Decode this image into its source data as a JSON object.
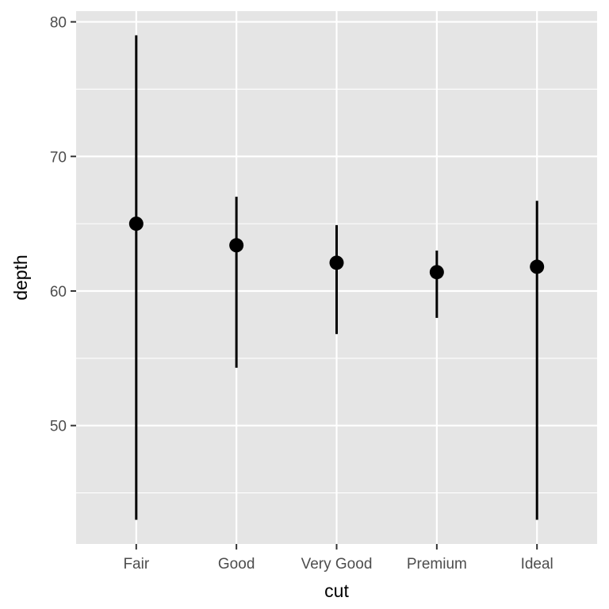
{
  "chart_data": {
    "type": "pointrange",
    "categories": [
      "Fair",
      "Good",
      "Very Good",
      "Premium",
      "Ideal"
    ],
    "points": [
      {
        "category": "Fair",
        "y": 65.0,
        "ymin": 43.0,
        "ymax": 79.0
      },
      {
        "category": "Good",
        "y": 63.4,
        "ymin": 54.3,
        "ymax": 67.0
      },
      {
        "category": "Very Good",
        "y": 62.1,
        "ymin": 56.8,
        "ymax": 64.9
      },
      {
        "category": "Premium",
        "y": 61.4,
        "ymin": 58.0,
        "ymax": 63.0
      },
      {
        "category": "Ideal",
        "y": 61.8,
        "ymin": 43.0,
        "ymax": 66.7
      }
    ],
    "xlabel": "cut",
    "ylabel": "depth",
    "ylim": [
      41.2,
      80.8
    ],
    "y_ticks": [
      50,
      60,
      70,
      80
    ],
    "y_minor_ticks": [
      45,
      55,
      65,
      75
    ],
    "grid": true,
    "colors": {
      "panel_background": "#e5e5e5",
      "grid": "#ffffff",
      "mark": "#000000",
      "tick_label": "#4d4d4d",
      "tick_mark": "#333333"
    }
  }
}
